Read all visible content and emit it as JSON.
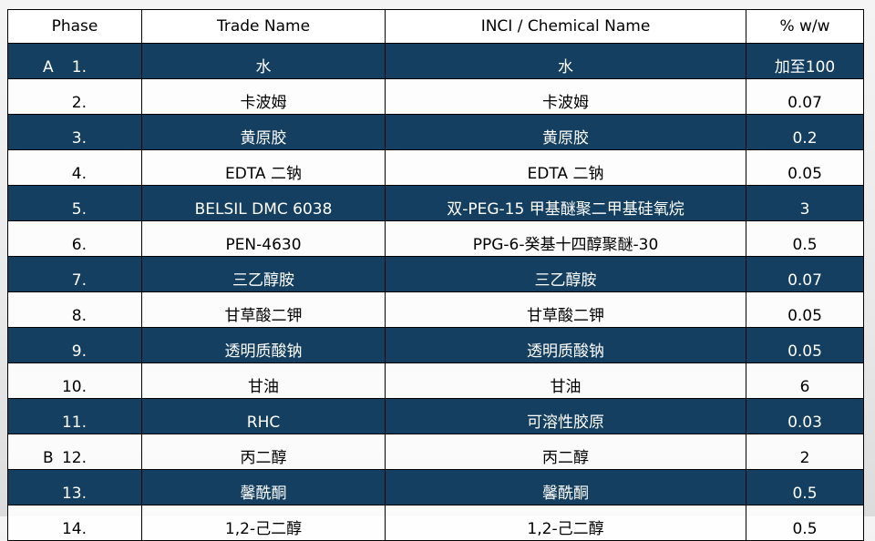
{
  "colors": {
    "dark_row": "#143f60",
    "light_row": "#ffffff"
  },
  "headers": [
    "Phase",
    "Trade Name",
    "INCI / Chemical Name",
    "% w/w"
  ],
  "rows": [
    {
      "phase": "A",
      "num": "1.",
      "trade": "水",
      "inci": "水",
      "pct": "加至100",
      "style": "dark"
    },
    {
      "phase": "",
      "num": "2.",
      "trade": "卡波姆",
      "inci": "卡波姆",
      "pct": "0.07",
      "style": "light"
    },
    {
      "phase": "",
      "num": "3.",
      "trade": "黄原胶",
      "inci": "黄原胶",
      "pct": "0.2",
      "style": "dark"
    },
    {
      "phase": "",
      "num": "4.",
      "trade": "EDTA 二钠",
      "inci": "EDTA 二钠",
      "pct": "0.05",
      "style": "light"
    },
    {
      "phase": "",
      "num": "5.",
      "trade": "BELSIL DMC 6038",
      "inci": "双-PEG-15 甲基醚聚二甲基硅氧烷",
      "pct": "3",
      "style": "dark"
    },
    {
      "phase": "",
      "num": "6.",
      "trade": "PEN-4630",
      "inci": "PPG-6-癸基十四醇聚醚-30",
      "pct": "0.5",
      "style": "light"
    },
    {
      "phase": "",
      "num": "7.",
      "trade": "三乙醇胺",
      "inci": "三乙醇胺",
      "pct": "0.07",
      "style": "dark"
    },
    {
      "phase": "",
      "num": "8.",
      "trade": "甘草酸二钾",
      "inci": "甘草酸二钾",
      "pct": "0.05",
      "style": "light"
    },
    {
      "phase": "",
      "num": "9.",
      "trade": "透明质酸钠",
      "inci": "透明质酸钠",
      "pct": "0.05",
      "style": "dark"
    },
    {
      "phase": "",
      "num": "10.",
      "trade": "甘油",
      "inci": "甘油",
      "pct": "6",
      "style": "light"
    },
    {
      "phase": "",
      "num": "11.",
      "trade": "RHC",
      "inci": "可溶性胶原",
      "pct": "0.03",
      "style": "dark"
    },
    {
      "phase": "B",
      "num": "12.",
      "trade": "丙二醇",
      "inci": "丙二醇",
      "pct": "2",
      "style": "light"
    },
    {
      "phase": "",
      "num": "13.",
      "trade": "馨酰酮",
      "inci": "馨酰酮",
      "pct": "0.5",
      "style": "dark"
    },
    {
      "phase": "",
      "num": "14.",
      "trade": "1,2-己二醇",
      "inci": "1,2-己二醇",
      "pct": "0.5",
      "style": "light"
    }
  ]
}
